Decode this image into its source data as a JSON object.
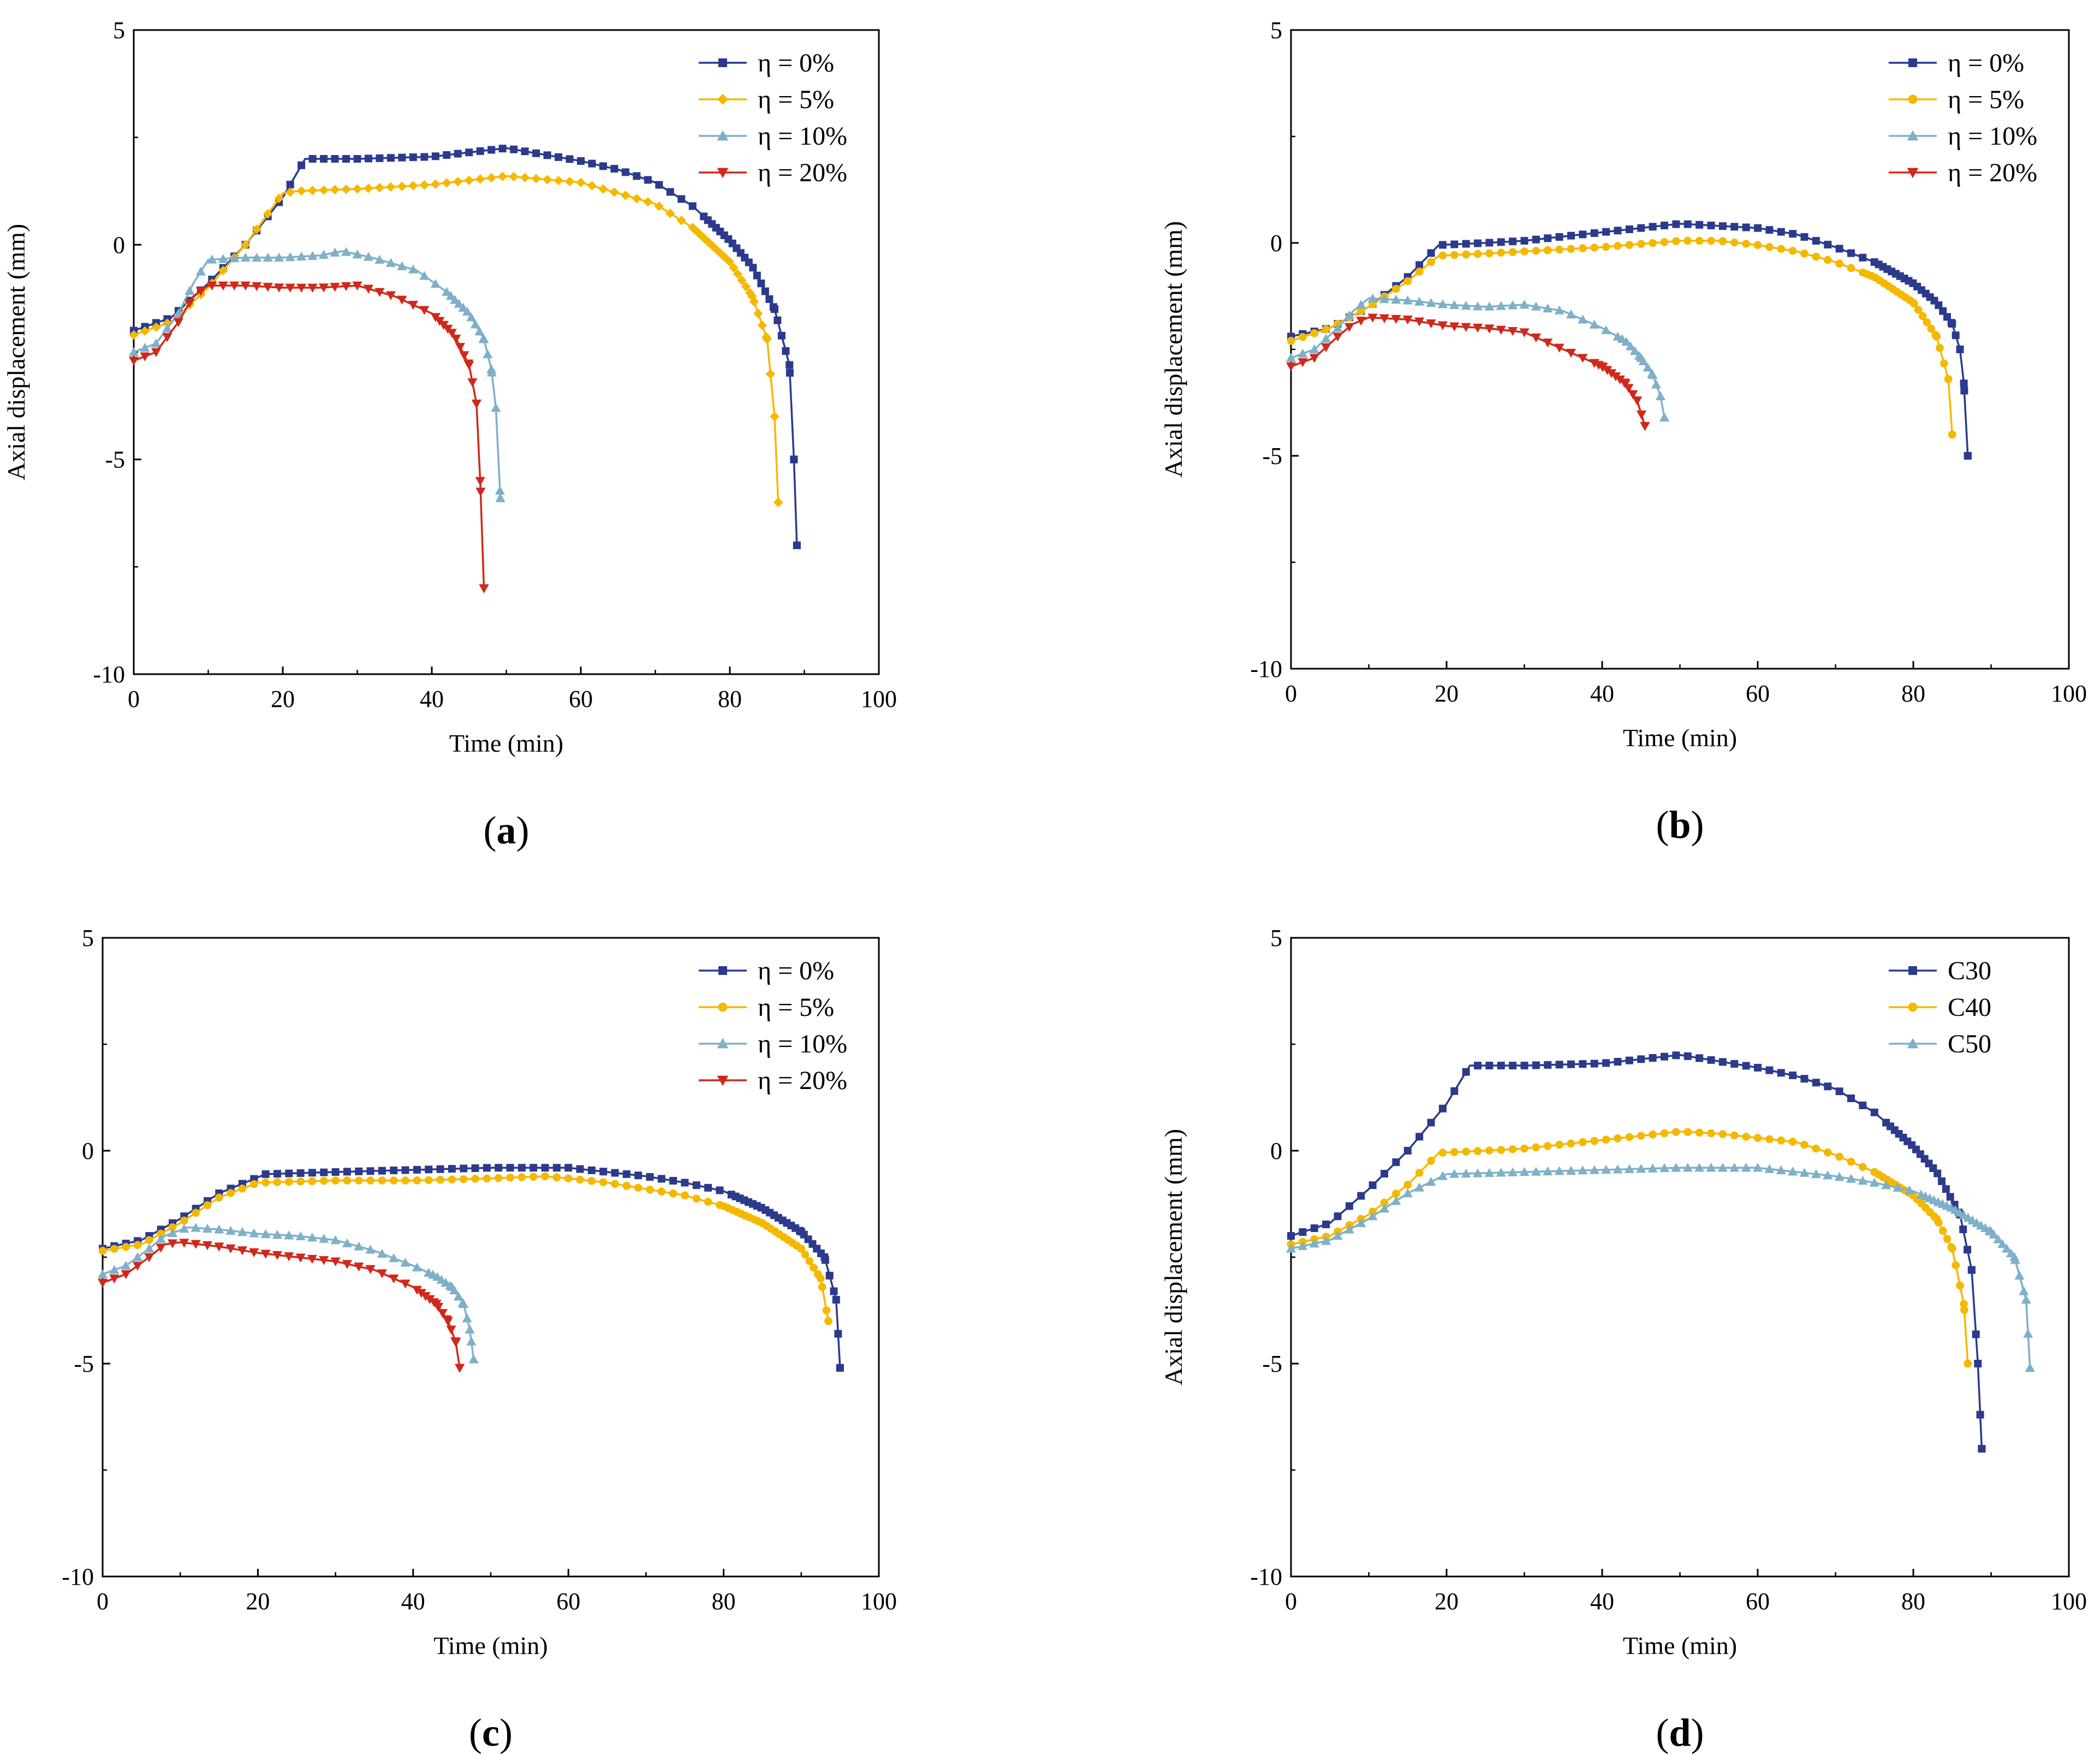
{
  "colors": {
    "navy": "#2b3a8c",
    "yellow": "#f5b800",
    "teal": "#7fb0c8",
    "red": "#d0281a"
  },
  "chart_data": [
    {
      "type": "line",
      "panel_label": "(a)",
      "panel_letter": "a",
      "xlabel": "Time (min)",
      "ylabel": "Axial displacement (mm)",
      "xlim": [
        0,
        100
      ],
      "ylim": [
        -10,
        5
      ],
      "xticks": [
        "0",
        "20",
        "40",
        "60",
        "80",
        "100"
      ],
      "yticks": [
        "5",
        "0",
        "-5",
        "-10"
      ],
      "legend_position": "top-right",
      "series": [
        {
          "name": "η = 0%",
          "color": "#2b3a8c",
          "marker": "square",
          "x": [
            0,
            5,
            10,
            15,
            20,
            23,
            30,
            40,
            45,
            50,
            55,
            60,
            65,
            70,
            75,
            80,
            83,
            86,
            88,
            88.6,
            89
          ],
          "y": [
            -2,
            -1.7,
            -0.9,
            0,
            1.1,
            2,
            2,
            2.05,
            2.15,
            2.25,
            2.1,
            1.95,
            1.75,
            1.45,
            0.9,
            0.1,
            -0.5,
            -1.5,
            -2.8,
            -5,
            -7
          ]
        },
        {
          "name": "η = 5%",
          "color": "#f5b800",
          "marker": "diamond",
          "x": [
            0,
            5,
            10,
            15,
            20,
            22,
            30,
            40,
            50,
            60,
            70,
            75,
            80,
            83,
            85,
            86,
            86.5
          ],
          "y": [
            -2.1,
            -1.8,
            -1,
            0,
            1.2,
            1.25,
            1.3,
            1.4,
            1.6,
            1.45,
            0.95,
            0.4,
            -0.4,
            -1.2,
            -2.2,
            -4,
            -6
          ]
        },
        {
          "name": "η = 10%",
          "color": "#7fb0c8",
          "marker": "triangle-up",
          "x": [
            0,
            3,
            6,
            8,
            10,
            15,
            20,
            25,
            28,
            32,
            38,
            42,
            45,
            47,
            48,
            48.6,
            49.2
          ],
          "y": [
            -2.5,
            -2.3,
            -1.6,
            -0.9,
            -0.35,
            -0.3,
            -0.3,
            -0.25,
            -0.15,
            -0.3,
            -0.6,
            -1.1,
            -1.6,
            -2.2,
            -2.9,
            -3.8,
            -5.9
          ]
        },
        {
          "name": "η = 20%",
          "color": "#d0281a",
          "marker": "triangle-down",
          "x": [
            0,
            3,
            6,
            8,
            10,
            15,
            20,
            25,
            30,
            35,
            40,
            43,
            45,
            46,
            46.5,
            47
          ],
          "y": [
            -2.7,
            -2.5,
            -1.8,
            -1.2,
            -0.95,
            -0.95,
            -1,
            -1,
            -0.95,
            -1.2,
            -1.6,
            -2.1,
            -2.8,
            -3.7,
            -5.5,
            -8
          ]
        }
      ]
    },
    {
      "type": "line",
      "panel_label": "(b)",
      "panel_letter": "b",
      "xlabel": "Time (min)",
      "ylabel": "Axial displacement (mm)",
      "xlim": [
        0,
        100
      ],
      "ylim": [
        -10,
        5
      ],
      "xticks": [
        "0",
        "20",
        "40",
        "60",
        "80",
        "100"
      ],
      "yticks": [
        "5",
        "0",
        "-5",
        "-10"
      ],
      "legend_position": "top-right",
      "series": [
        {
          "name": "η = 0%",
          "color": "#2b3a8c",
          "marker": "square",
          "x": [
            0,
            5,
            10,
            15,
            19,
            25,
            30,
            40,
            50,
            55,
            60,
            65,
            70,
            75,
            80,
            83,
            85,
            86,
            86.5,
            87
          ],
          "y": [
            -2.2,
            -2,
            -1.5,
            -0.8,
            -0.05,
            0,
            0.05,
            0.25,
            0.45,
            0.4,
            0.35,
            0.2,
            -0.1,
            -0.45,
            -0.95,
            -1.4,
            -1.9,
            -2.5,
            -3.3,
            -5
          ]
        },
        {
          "name": "η = 5%",
          "color": "#f5b800",
          "marker": "circle",
          "x": [
            0,
            5,
            10,
            15,
            19,
            25,
            30,
            40,
            50,
            55,
            60,
            65,
            70,
            75,
            80,
            83,
            84.5,
            85
          ],
          "y": [
            -2.3,
            -2,
            -1.5,
            -0.9,
            -0.3,
            -0.25,
            -0.2,
            -0.1,
            0.05,
            0.05,
            -0.05,
            -0.2,
            -0.45,
            -0.8,
            -1.4,
            -2.2,
            -3.2,
            -4.5
          ]
        },
        {
          "name": "η = 10%",
          "color": "#7fb0c8",
          "marker": "triangle-up",
          "x": [
            0,
            3,
            6,
            8,
            10,
            15,
            20,
            25,
            30,
            35,
            40,
            43,
            45,
            46.5,
            47.5,
            48
          ],
          "y": [
            -2.7,
            -2.5,
            -2,
            -1.6,
            -1.3,
            -1.35,
            -1.45,
            -1.5,
            -1.45,
            -1.6,
            -2,
            -2.3,
            -2.7,
            -3.1,
            -3.6,
            -4.1
          ]
        },
        {
          "name": "η = 20%",
          "color": "#d0281a",
          "marker": "triangle-down",
          "x": [
            0,
            3,
            6,
            8,
            10,
            15,
            20,
            25,
            30,
            35,
            40,
            43,
            44.5,
            45.5
          ],
          "y": [
            -2.9,
            -2.7,
            -2.2,
            -1.9,
            -1.75,
            -1.8,
            -1.95,
            -2,
            -2.1,
            -2.5,
            -2.9,
            -3.3,
            -3.7,
            -4.3
          ]
        }
      ]
    },
    {
      "type": "line",
      "panel_label": "(c)",
      "panel_letter": "c",
      "xlabel": "Time (min)",
      "ylabel": "Axial displacement (mm)",
      "xlim": [
        0,
        100
      ],
      "ylim": [
        -10,
        5
      ],
      "xticks": [
        "0",
        "20",
        "40",
        "60",
        "80",
        "100"
      ],
      "yticks": [
        "5",
        "0",
        "-5",
        "-10"
      ],
      "legend_position": "top-right",
      "series": [
        {
          "name": "η = 0%",
          "color": "#2b3a8c",
          "marker": "square",
          "x": [
            0,
            5,
            10,
            15,
            21,
            30,
            40,
            50,
            55,
            60,
            65,
            70,
            75,
            80,
            85,
            90,
            93,
            94.5,
            95
          ],
          "y": [
            -2.3,
            -2.1,
            -1.6,
            -1,
            -0.55,
            -0.5,
            -0.45,
            -0.4,
            -0.4,
            -0.4,
            -0.5,
            -0.6,
            -0.75,
            -0.95,
            -1.35,
            -1.9,
            -2.5,
            -3.5,
            -5.1
          ]
        },
        {
          "name": "η = 5%",
          "color": "#f5b800",
          "marker": "circle",
          "x": [
            0,
            5,
            10,
            15,
            20,
            30,
            40,
            50,
            57,
            60,
            65,
            70,
            75,
            80,
            85,
            90,
            92.5,
            93.5
          ],
          "y": [
            -2.35,
            -2.2,
            -1.7,
            -1.1,
            -0.75,
            -0.7,
            -0.7,
            -0.65,
            -0.6,
            -0.65,
            -0.75,
            -0.9,
            -1.05,
            -1.3,
            -1.7,
            -2.3,
            -3,
            -4
          ]
        },
        {
          "name": "η = 10%",
          "color": "#7fb0c8",
          "marker": "triangle-up",
          "x": [
            0,
            3,
            6,
            8,
            11,
            15,
            20,
            25,
            30,
            35,
            40,
            43,
            45,
            46.5,
            47.3,
            47.8
          ],
          "y": [
            -2.9,
            -2.7,
            -2.3,
            -2,
            -1.8,
            -1.85,
            -1.95,
            -2,
            -2.1,
            -2.35,
            -2.7,
            -2.95,
            -3.2,
            -3.6,
            -4.2,
            -4.9
          ]
        },
        {
          "name": "η = 20%",
          "color": "#d0281a",
          "marker": "triangle-down",
          "x": [
            0,
            3,
            6,
            8,
            10,
            15,
            20,
            25,
            30,
            35,
            40,
            43,
            44.5,
            45.5,
            46
          ],
          "y": [
            -3.1,
            -2.9,
            -2.5,
            -2.2,
            -2.15,
            -2.25,
            -2.4,
            -2.5,
            -2.6,
            -2.8,
            -3.2,
            -3.6,
            -4,
            -4.5,
            -5.1
          ]
        }
      ]
    },
    {
      "type": "line",
      "panel_label": "(d)",
      "panel_letter": "d",
      "xlabel": "Time (min)",
      "ylabel": "Axial displacement (mm)",
      "xlim": [
        0,
        100
      ],
      "ylim": [
        -10,
        5
      ],
      "xticks": [
        "0",
        "20",
        "40",
        "60",
        "80",
        "100"
      ],
      "yticks": [
        "5",
        "0",
        "-5",
        "-10"
      ],
      "legend_position": "top-right",
      "series": [
        {
          "name": "C30",
          "color": "#2b3a8c",
          "marker": "square",
          "x": [
            0,
            5,
            10,
            15,
            20,
            23,
            30,
            40,
            45,
            50,
            55,
            60,
            65,
            70,
            75,
            80,
            83,
            86,
            87.5,
            88.3,
            88.8
          ],
          "y": [
            -2,
            -1.7,
            -0.9,
            0,
            1.1,
            2,
            2,
            2.05,
            2.15,
            2.25,
            2.1,
            1.95,
            1.75,
            1.45,
            0.9,
            0.1,
            -0.5,
            -1.5,
            -2.8,
            -5,
            -7
          ]
        },
        {
          "name": "C40",
          "color": "#f5b800",
          "marker": "circle",
          "x": [
            0,
            5,
            10,
            15,
            19,
            25,
            30,
            40,
            50,
            55,
            60,
            65,
            70,
            75,
            80,
            83,
            85,
            86.5,
            87
          ],
          "y": [
            -2.2,
            -2,
            -1.5,
            -0.8,
            -0.05,
            0,
            0.05,
            0.25,
            0.45,
            0.4,
            0.3,
            0.2,
            -0.1,
            -0.5,
            -1.05,
            -1.6,
            -2.3,
            -3.6,
            -5
          ]
        },
        {
          "name": "C50",
          "color": "#7fb0c8",
          "marker": "triangle-up",
          "x": [
            0,
            5,
            10,
            15,
            20,
            30,
            40,
            50,
            55,
            60,
            65,
            70,
            75,
            80,
            85,
            90,
            93,
            94.5,
            95
          ],
          "y": [
            -2.3,
            -2.1,
            -1.6,
            -1,
            -0.55,
            -0.5,
            -0.45,
            -0.4,
            -0.4,
            -0.4,
            -0.5,
            -0.6,
            -0.75,
            -0.95,
            -1.35,
            -1.9,
            -2.5,
            -3.5,
            -5.1
          ]
        }
      ]
    }
  ]
}
